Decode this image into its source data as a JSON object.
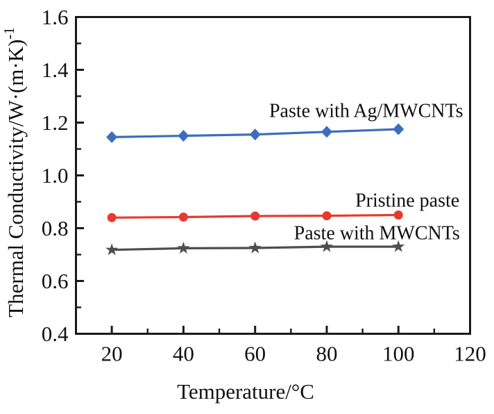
{
  "chart_data": {
    "type": "line",
    "title": "",
    "xlabel": "Temperature/°C",
    "ylabel": "Thermal Conductivity/W·(m·K)⁻¹",
    "ylabel_base": "Thermal Conductivity/W·(m·K)",
    "ylabel_superscript": "-1",
    "xlim": [
      10,
      120
    ],
    "ylim": [
      0.4,
      1.6
    ],
    "grid": false,
    "legend_position": "inline-annotations",
    "x": [
      20,
      40,
      60,
      80,
      100
    ],
    "x_major_ticks": [
      20,
      40,
      60,
      80,
      100,
      120
    ],
    "x_tick_labels": [
      "20",
      "40",
      "60",
      "80",
      "100",
      "120"
    ],
    "x_minor_ticks": [
      30,
      50,
      70,
      90,
      110
    ],
    "y_major_ticks": [
      0.4,
      0.6,
      0.8,
      1.0,
      1.2,
      1.4,
      1.6
    ],
    "y_tick_labels": [
      "0.4",
      "0.6",
      "0.8",
      "1.0",
      "1.2",
      "1.4",
      "1.6"
    ],
    "y_minor_ticks": [
      0.5,
      0.7,
      0.9,
      1.1,
      1.3,
      1.5
    ],
    "series": [
      {
        "name": "Paste with Ag/MWCNTs",
        "marker": "diamond",
        "color": "#3D6DBE",
        "values": [
          1.145,
          1.15,
          1.155,
          1.165,
          1.175
        ],
        "label": {
          "text": "Paste with Ag/MWCNTs",
          "x": 91,
          "y": 1.245
        }
      },
      {
        "name": "Pristine paste",
        "marker": "circle",
        "color": "#E8392F",
        "values": [
          0.84,
          0.842,
          0.846,
          0.847,
          0.85
        ],
        "label": {
          "text": "Pristine paste",
          "x": 102.5,
          "y": 0.905
        }
      },
      {
        "name": "Paste with MWCNTs",
        "marker": "star",
        "color": "#4E4E4E",
        "values": [
          0.718,
          0.724,
          0.725,
          0.73,
          0.73
        ],
        "label": {
          "text": "Paste with MWCNTs",
          "x": 94,
          "y": 0.782
        }
      }
    ],
    "colors": {
      "axis": "#1a1a1a",
      "text": "#111111",
      "background": "#ffffff"
    }
  }
}
